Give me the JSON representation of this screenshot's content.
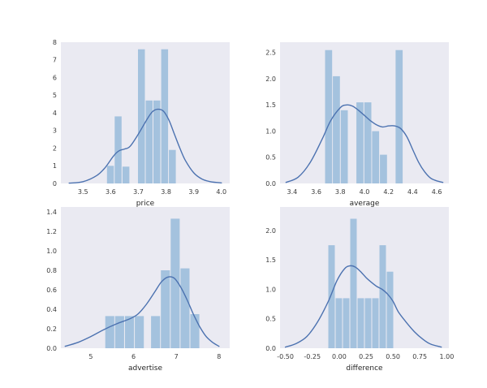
{
  "figure": {
    "background": "#ffffff",
    "panel_bg": "#eaeaf2",
    "bar_color": "#a4c2de",
    "line_color": "#4c72b0",
    "tick_color": "#3a3a3a",
    "label_color": "#262626"
  },
  "chart_data": [
    {
      "type": "histogram+kde",
      "xlabel": "price",
      "xlim": [
        3.42,
        4.03
      ],
      "ylim": [
        0,
        8
      ],
      "xticks": [
        3.5,
        3.6,
        3.7,
        3.8,
        3.9,
        4.0
      ],
      "xtick_labels": [
        "3.5",
        "3.6",
        "3.7",
        "3.8",
        "3.9",
        "4.0"
      ],
      "yticks": [
        0,
        1,
        2,
        3,
        4,
        5,
        6,
        7,
        8
      ],
      "ytick_labels": [
        "0",
        "1",
        "2",
        "3",
        "4",
        "5",
        "6",
        "7",
        "8"
      ],
      "bars": [
        {
          "x0": 3.585,
          "x1": 3.613,
          "h": 1.0
        },
        {
          "x0": 3.613,
          "x1": 3.641,
          "h": 3.8
        },
        {
          "x0": 3.641,
          "x1": 3.669,
          "h": 0.95
        },
        {
          "x0": 3.697,
          "x1": 3.725,
          "h": 7.6
        },
        {
          "x0": 3.725,
          "x1": 3.753,
          "h": 4.7
        },
        {
          "x0": 3.753,
          "x1": 3.781,
          "h": 4.7
        },
        {
          "x0": 3.781,
          "x1": 3.809,
          "h": 7.6
        },
        {
          "x0": 3.809,
          "x1": 3.837,
          "h": 1.9
        }
      ],
      "kde": [
        [
          3.45,
          0.02
        ],
        [
          3.5,
          0.1
        ],
        [
          3.55,
          0.45
        ],
        [
          3.58,
          0.9
        ],
        [
          3.61,
          1.55
        ],
        [
          3.63,
          1.85
        ],
        [
          3.65,
          1.95
        ],
        [
          3.67,
          2.1
        ],
        [
          3.7,
          2.8
        ],
        [
          3.73,
          3.6
        ],
        [
          3.75,
          4.05
        ],
        [
          3.77,
          4.2
        ],
        [
          3.79,
          4.1
        ],
        [
          3.81,
          3.6
        ],
        [
          3.83,
          2.8
        ],
        [
          3.85,
          2.0
        ],
        [
          3.87,
          1.3
        ],
        [
          3.9,
          0.6
        ],
        [
          3.93,
          0.25
        ],
        [
          3.96,
          0.1
        ],
        [
          4.0,
          0.03
        ]
      ]
    },
    {
      "type": "histogram+kde",
      "xlabel": "average",
      "xlim": [
        3.3,
        4.7
      ],
      "ylim": [
        0,
        2.7
      ],
      "xticks": [
        3.4,
        3.6,
        3.8,
        4.0,
        4.2,
        4.4,
        4.6
      ],
      "xtick_labels": [
        "3.4",
        "3.6",
        "3.8",
        "4.0",
        "4.2",
        "4.4",
        "4.6"
      ],
      "yticks": [
        0,
        0.5,
        1.0,
        1.5,
        2.0,
        2.5
      ],
      "ytick_labels": [
        "0.0",
        "0.5",
        "1.0",
        "1.5",
        "2.0",
        "2.5"
      ],
      "bars": [
        {
          "x0": 3.67,
          "x1": 3.735,
          "h": 2.55
        },
        {
          "x0": 3.735,
          "x1": 3.8,
          "h": 2.05
        },
        {
          "x0": 3.8,
          "x1": 3.865,
          "h": 1.4
        },
        {
          "x0": 3.93,
          "x1": 3.995,
          "h": 1.55
        },
        {
          "x0": 3.995,
          "x1": 4.06,
          "h": 1.55
        },
        {
          "x0": 4.06,
          "x1": 4.125,
          "h": 1.0
        },
        {
          "x0": 4.125,
          "x1": 4.19,
          "h": 0.55
        },
        {
          "x0": 4.255,
          "x1": 4.32,
          "h": 2.55
        }
      ],
      "kde": [
        [
          3.35,
          0.02
        ],
        [
          3.45,
          0.12
        ],
        [
          3.55,
          0.4
        ],
        [
          3.65,
          0.85
        ],
        [
          3.72,
          1.2
        ],
        [
          3.8,
          1.45
        ],
        [
          3.85,
          1.5
        ],
        [
          3.9,
          1.48
        ],
        [
          3.95,
          1.4
        ],
        [
          4.0,
          1.3
        ],
        [
          4.05,
          1.2
        ],
        [
          4.1,
          1.12
        ],
        [
          4.15,
          1.08
        ],
        [
          4.2,
          1.1
        ],
        [
          4.25,
          1.1
        ],
        [
          4.3,
          1.05
        ],
        [
          4.35,
          0.9
        ],
        [
          4.4,
          0.65
        ],
        [
          4.45,
          0.4
        ],
        [
          4.5,
          0.22
        ],
        [
          4.55,
          0.1
        ],
        [
          4.6,
          0.05
        ],
        [
          4.65,
          0.02
        ]
      ]
    },
    {
      "type": "histogram+kde",
      "xlabel": "advertise",
      "xlim": [
        4.3,
        8.25
      ],
      "ylim": [
        0,
        1.45
      ],
      "xticks": [
        5,
        6,
        7,
        8
      ],
      "xtick_labels": [
        "5",
        "6",
        "7",
        "8"
      ],
      "yticks": [
        0,
        0.2,
        0.4,
        0.6,
        0.8,
        1.0,
        1.2,
        1.4
      ],
      "ytick_labels": [
        "0.0",
        "0.2",
        "0.4",
        "0.6",
        "0.8",
        "1.0",
        "1.2",
        "1.4"
      ],
      "bars": [
        {
          "x0": 5.33,
          "x1": 5.56,
          "h": 0.33
        },
        {
          "x0": 5.56,
          "x1": 5.79,
          "h": 0.33
        },
        {
          "x0": 5.79,
          "x1": 6.02,
          "h": 0.33
        },
        {
          "x0": 6.02,
          "x1": 6.25,
          "h": 0.33
        },
        {
          "x0": 6.4,
          "x1": 6.63,
          "h": 0.33
        },
        {
          "x0": 6.63,
          "x1": 6.86,
          "h": 0.8
        },
        {
          "x0": 6.86,
          "x1": 7.09,
          "h": 1.33
        },
        {
          "x0": 7.09,
          "x1": 7.32,
          "h": 0.82
        },
        {
          "x0": 7.32,
          "x1": 7.55,
          "h": 0.35
        }
      ],
      "kde": [
        [
          4.4,
          0.02
        ],
        [
          4.7,
          0.06
        ],
        [
          5.0,
          0.12
        ],
        [
          5.3,
          0.19
        ],
        [
          5.6,
          0.25
        ],
        [
          5.9,
          0.3
        ],
        [
          6.1,
          0.35
        ],
        [
          6.3,
          0.45
        ],
        [
          6.5,
          0.58
        ],
        [
          6.65,
          0.68
        ],
        [
          6.8,
          0.73
        ],
        [
          6.95,
          0.72
        ],
        [
          7.1,
          0.63
        ],
        [
          7.25,
          0.5
        ],
        [
          7.4,
          0.35
        ],
        [
          7.55,
          0.22
        ],
        [
          7.7,
          0.12
        ],
        [
          7.85,
          0.06
        ],
        [
          8.0,
          0.02
        ]
      ]
    },
    {
      "type": "histogram+kde",
      "xlabel": "difference",
      "xlim": [
        -0.55,
        1.02
      ],
      "ylim": [
        0,
        2.4
      ],
      "xticks": [
        -0.5,
        -0.25,
        0.0,
        0.25,
        0.5,
        0.75,
        1.0
      ],
      "xtick_labels": [
        "-0.50",
        "-0.25",
        "0.00",
        "0.25",
        "0.50",
        "0.75",
        "1.00"
      ],
      "yticks": [
        0,
        0.5,
        1.0,
        1.5,
        2.0
      ],
      "ytick_labels": [
        "0.0",
        "0.5",
        "1.0",
        "1.5",
        "2.0"
      ],
      "bars": [
        {
          "x0": -0.105,
          "x1": -0.037,
          "h": 1.75
        },
        {
          "x0": -0.037,
          "x1": 0.031,
          "h": 0.85
        },
        {
          "x0": 0.031,
          "x1": 0.099,
          "h": 0.85
        },
        {
          "x0": 0.099,
          "x1": 0.167,
          "h": 2.2
        },
        {
          "x0": 0.167,
          "x1": 0.235,
          "h": 0.85
        },
        {
          "x0": 0.235,
          "x1": 0.303,
          "h": 0.85
        },
        {
          "x0": 0.303,
          "x1": 0.371,
          "h": 0.85
        },
        {
          "x0": 0.371,
          "x1": 0.439,
          "h": 1.75
        },
        {
          "x0": 0.439,
          "x1": 0.507,
          "h": 1.3
        }
      ],
      "kde": [
        [
          -0.5,
          0.02
        ],
        [
          -0.4,
          0.08
        ],
        [
          -0.3,
          0.2
        ],
        [
          -0.2,
          0.45
        ],
        [
          -0.1,
          0.8
        ],
        [
          -0.02,
          1.15
        ],
        [
          0.05,
          1.35
        ],
        [
          0.1,
          1.4
        ],
        [
          0.15,
          1.38
        ],
        [
          0.2,
          1.3
        ],
        [
          0.25,
          1.2
        ],
        [
          0.3,
          1.12
        ],
        [
          0.35,
          1.05
        ],
        [
          0.4,
          1.0
        ],
        [
          0.45,
          0.92
        ],
        [
          0.5,
          0.8
        ],
        [
          0.55,
          0.62
        ],
        [
          0.62,
          0.45
        ],
        [
          0.7,
          0.28
        ],
        [
          0.78,
          0.15
        ],
        [
          0.85,
          0.07
        ],
        [
          0.95,
          0.02
        ]
      ]
    }
  ]
}
